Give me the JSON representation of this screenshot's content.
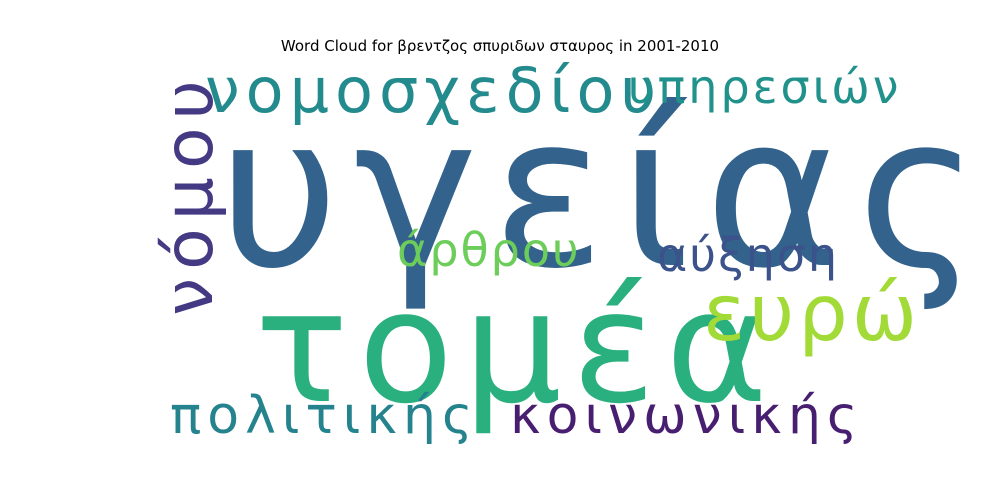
{
  "title": "Word Cloud for βρεντζος σπυριδων σταυρος in 2001-2010",
  "words": [
    {
      "text": "υγείας",
      "color": "#33638d"
    },
    {
      "text": "τομέα",
      "color": "#2ab07f"
    },
    {
      "text": "νομοσχεδίου",
      "color": "#238a8d"
    },
    {
      "text": "υπηρεσιών",
      "color": "#21918c"
    },
    {
      "text": "νόμου",
      "color": "#443983"
    },
    {
      "text": "άρθρου",
      "color": "#6ccd5a"
    },
    {
      "text": "αύξηση",
      "color": "#3b528b"
    },
    {
      "text": "ευρώ",
      "color": "#a2da37"
    },
    {
      "text": "πολιτικής",
      "color": "#25838e"
    },
    {
      "text": "κοινωνικής",
      "color": "#481f70"
    }
  ]
}
